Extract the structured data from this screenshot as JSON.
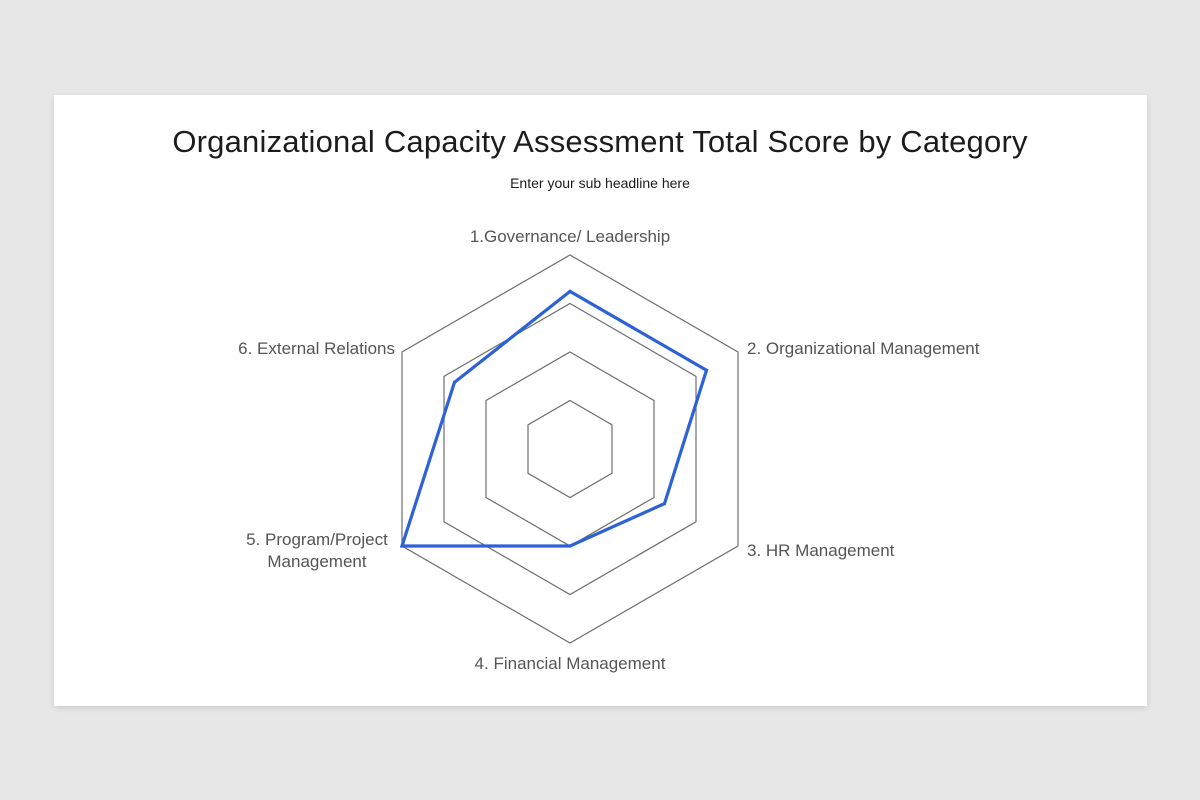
{
  "title": "Organizational Capacity Assessment Total Score by Category",
  "subtitle": "Enter your sub headline here",
  "chart_data": {
    "type": "radar",
    "categories": [
      "1.Governance/ Leadership",
      "2. Organizational Management",
      "3. HR Management",
      "4. Financial Management",
      "5. Program/Project Management",
      "6. External Relations"
    ],
    "label_lines": [
      [
        "1.Governance/ Leadership"
      ],
      [
        "2. Organizational Management"
      ],
      [
        "3. HR Management"
      ],
      [
        "4. Financial Management"
      ],
      [
        "5. Program/Project",
        "Management"
      ],
      [
        "6. External Relations"
      ]
    ],
    "series": [
      {
        "values": [
          3.25,
          3.25,
          2.25,
          2.0,
          4.0,
          2.75
        ]
      }
    ],
    "rlim": [
      0,
      4
    ],
    "rings": 4,
    "grid": true,
    "legend": "none",
    "colors": {
      "series": "#2d62d6",
      "grid": "#6e6e6e"
    }
  }
}
